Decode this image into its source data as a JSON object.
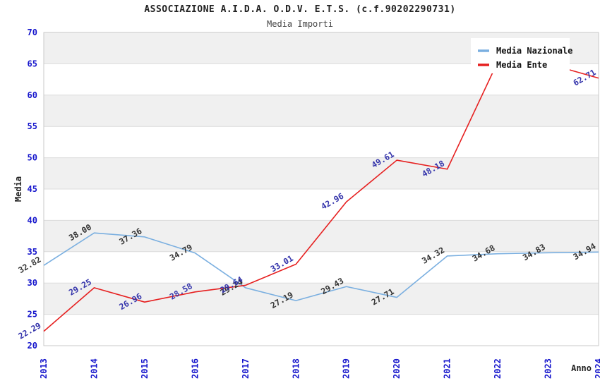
{
  "header": {
    "title": "ASSOCIAZIONE A.I.D.A. O.D.V. E.T.S. (c.f.90202290731)",
    "subtitle": "Media Importi"
  },
  "chart_data": {
    "type": "line",
    "x": [
      2013,
      2014,
      2015,
      2016,
      2017,
      2018,
      2019,
      2020,
      2021,
      2022,
      2023,
      2024
    ],
    "series": [
      {
        "name": "Media Nazionale",
        "color": "#7aafe0",
        "label_color": "#333333",
        "values": [
          32.82,
          38.0,
          37.36,
          34.79,
          29.24,
          27.19,
          29.43,
          27.71,
          34.32,
          34.68,
          34.83,
          34.94
        ],
        "labels": [
          "32.82",
          "38.00",
          "37.36",
          "34.79",
          "29.24",
          "27.19",
          "29.43",
          "27.71",
          "34.32",
          "34.68",
          "34.83",
          "34.94"
        ]
      },
      {
        "name": "Media Ente",
        "color": "#e62020",
        "label_color": "#3434ab",
        "values": [
          22.29,
          29.25,
          26.96,
          28.58,
          29.64,
          33.01,
          42.96,
          49.61,
          48.18,
          65.3,
          65.0,
          62.71
        ],
        "labels": [
          "22.29",
          "29.25",
          "26.96",
          "28.58",
          "29.64",
          "33.01",
          "42.96",
          "49.61",
          "48.18",
          "",
          "",
          "62.71"
        ]
      }
    ],
    "title": "ASSOCIAZIONE A.I.D.A. O.D.V. E.T.S. (c.f.90202290731)",
    "subtitle": "Media Importi",
    "xlabel": "Anno",
    "ylabel": "Media",
    "ylim": [
      20,
      70
    ],
    "ytick_step": 5,
    "y_ticks": [
      20,
      25,
      30,
      35,
      40,
      45,
      50,
      55,
      60,
      65,
      70
    ],
    "legend_position": "top-right",
    "grid": "horizontal-bands-alternating",
    "band_color": "#f0f0f0",
    "gridline_color": "#dcdcdc",
    "tick_label_color": "#1515cc",
    "axis_title_color": "#222222"
  }
}
